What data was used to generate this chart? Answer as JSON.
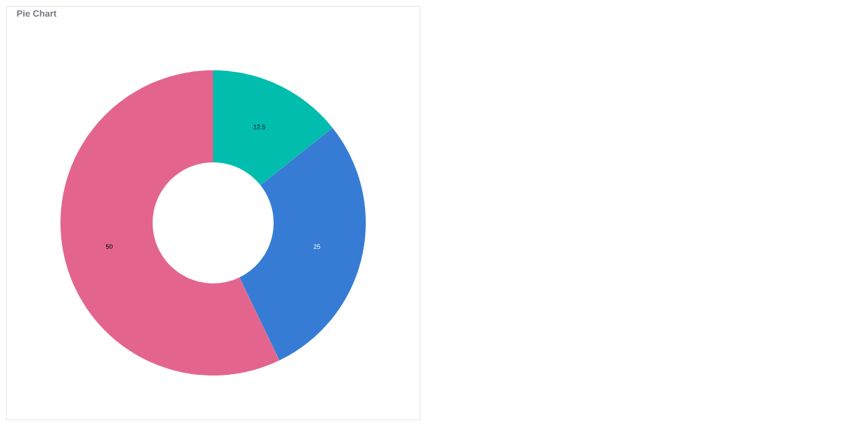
{
  "chart_data": {
    "type": "donut",
    "title": "Pie Chart",
    "categories": [
      null,
      null,
      null
    ],
    "values": [
      12.5,
      25,
      50
    ],
    "colors": [
      "#00bdae",
      "#367cd4",
      "#e3658e"
    ],
    "data_labels": true
  }
}
